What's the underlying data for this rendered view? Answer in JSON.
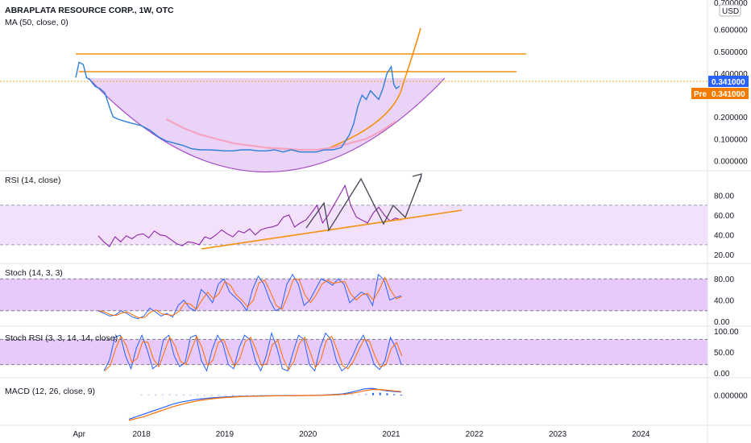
{
  "chart_data": [
    {
      "type": "line",
      "title": "ABRAPLATA RESOURCE CORP., 1W, OTC",
      "subtitle": "MA (50, close, 0)",
      "currency_label": "USD",
      "y_ticks": [
        "0.600000",
        "0.500000",
        "0.400000",
        "0.200000",
        "0.100000",
        "0.000000"
      ],
      "y_top_partial": "0.700000",
      "ylim": [
        -0.02,
        0.72
      ],
      "last_price_label": "0.341000",
      "pre_label": "Pre",
      "pre_price_label": "0.341000",
      "x_ticks": [
        "Apr",
        "2018",
        "2019",
        "2020",
        "2021",
        "2022",
        "2023",
        "2024"
      ],
      "x_tick_years": [
        2017.25,
        2018.0,
        2019.0,
        2020.0,
        2021.0,
        2022.0,
        2023.0,
        2024.0
      ],
      "xlim": [
        2016.3,
        2024.8
      ],
      "colors": {
        "price": "#2e7fd9",
        "ma": "#f4a3c0",
        "fill": "#e6c9f5",
        "cup": "#a24dc7",
        "resistance": "#f5900f",
        "up": "#2962ff",
        "pre": "#f57c00"
      },
      "series": [
        {
          "values_x": [
            2017.21,
            2017.25,
            2017.3,
            2017.34,
            2017.38,
            2017.44,
            2017.5,
            2017.56,
            2017.62,
            2017.66,
            2017.72,
            2017.8,
            2017.9,
            2018.0,
            2018.1,
            2018.2,
            2018.3,
            2018.4,
            2018.5,
            2018.6,
            2018.7,
            2018.8,
            2018.9,
            2019.0,
            2019.1,
            2019.2,
            2019.3,
            2019.4,
            2019.5,
            2019.6,
            2019.7,
            2019.8,
            2019.9,
            2020.0,
            2020.1,
            2020.2,
            2020.3,
            2020.4,
            2020.45,
            2020.5,
            2020.55,
            2020.6,
            2020.65,
            2020.7,
            2020.75,
            2020.8,
            2020.85,
            2020.9,
            2020.95,
            2021.0,
            2021.03,
            2021.06,
            2021.1
          ],
          "values_y": [
            0.38,
            0.45,
            0.44,
            0.38,
            0.37,
            0.34,
            0.33,
            0.31,
            0.24,
            0.2,
            0.19,
            0.18,
            0.17,
            0.16,
            0.14,
            0.11,
            0.09,
            0.08,
            0.07,
            0.055,
            0.05,
            0.05,
            0.048,
            0.045,
            0.045,
            0.05,
            0.05,
            0.045,
            0.045,
            0.05,
            0.04,
            0.05,
            0.04,
            0.04,
            0.04,
            0.05,
            0.05,
            0.06,
            0.09,
            0.12,
            0.17,
            0.25,
            0.3,
            0.28,
            0.32,
            0.3,
            0.28,
            0.33,
            0.4,
            0.43,
            0.35,
            0.33,
            0.341
          ]
        },
        {
          "values_x": [
            2018.3,
            2018.5,
            2018.7,
            2018.9,
            2019.1,
            2019.3,
            2019.5,
            2019.7,
            2019.9,
            2020.1,
            2020.3,
            2020.5,
            2020.7,
            2020.9,
            2021.05
          ],
          "values_y": [
            0.19,
            0.15,
            0.12,
            0.1,
            0.08,
            0.07,
            0.06,
            0.055,
            0.05,
            0.05,
            0.06,
            0.08,
            0.1,
            0.14,
            0.18
          ]
        }
      ]
    },
    {
      "type": "line",
      "title": "RSI (14, close)",
      "y_ticks": [
        "80.00",
        "60.00",
        "40.00",
        "20.00"
      ],
      "ylim": [
        16,
        100
      ],
      "band": [
        30,
        70
      ],
      "values": [
        39,
        33,
        28,
        38,
        33,
        39,
        36,
        40,
        41,
        37,
        44,
        40,
        39,
        35,
        31,
        29,
        33,
        32,
        30,
        38,
        36,
        40,
        45,
        41,
        38,
        44,
        42,
        46,
        40,
        45,
        47,
        48,
        50,
        58,
        60,
        48,
        52,
        55,
        62,
        70,
        52,
        60,
        70,
        80,
        90,
        70,
        58,
        55,
        52,
        62,
        68,
        60,
        54,
        57,
        55
      ]
    },
    {
      "type": "line",
      "title": "Stoch (14, 3, 3)",
      "y_ticks": [
        "80.00",
        "40.00",
        "0.00"
      ],
      "ylim": [
        0,
        100
      ],
      "band": [
        20,
        80
      ],
      "values": [
        20,
        15,
        10,
        12,
        20,
        15,
        8,
        5,
        10,
        25,
        18,
        10,
        15,
        8,
        30,
        40,
        25,
        20,
        60,
        50,
        35,
        70,
        80,
        55,
        45,
        35,
        20,
        60,
        85,
        70,
        40,
        20,
        25,
        70,
        88,
        70,
        30,
        40,
        60,
        80,
        75,
        68,
        80,
        70,
        35,
        45,
        55,
        50,
        30,
        88,
        78,
        40,
        45,
        48
      ]
    },
    {
      "type": "line",
      "title": "Stoch RSI (3, 3, 14, 14, close)",
      "y_ticks": [
        "100.00",
        "50.00",
        "0.00"
      ],
      "ylim": [
        0,
        100
      ],
      "band": [
        20,
        80
      ],
      "values": [
        5,
        30,
        85,
        90,
        40,
        10,
        60,
        90,
        55,
        10,
        20,
        80,
        90,
        40,
        15,
        25,
        85,
        90,
        30,
        5,
        55,
        90,
        70,
        20,
        10,
        60,
        90,
        80,
        30,
        5,
        40,
        95,
        60,
        10,
        5,
        50,
        90,
        80,
        20,
        5,
        60,
        95,
        80,
        30,
        5,
        15,
        40,
        70,
        90,
        60,
        20,
        8,
        30,
        85,
        60,
        20
      ]
    },
    {
      "type": "bar",
      "title": "MACD (12, 26, close, 9)",
      "y_ticks": [
        "0.000000"
      ],
      "ylim": [
        -0.2,
        0.1
      ],
      "histogram": [
        0.005,
        0.006,
        0.004,
        0.006,
        0.007,
        0.005,
        0.004,
        0.003,
        0.003,
        0.002,
        0.002,
        0.002,
        0.001,
        0.001,
        0.001,
        0.001,
        0.001,
        0.001,
        0.001,
        0.001,
        0.001,
        0.001,
        0.001,
        0.001,
        0.001,
        0.001,
        0.002,
        0.002,
        0.003,
        0.004,
        0.005,
        0.008,
        0.012,
        0.018,
        0.02,
        0.015,
        0.008,
        0.004
      ],
      "macd": [
        -0.19,
        -0.17,
        -0.15,
        -0.13,
        -0.11,
        -0.09,
        -0.07,
        -0.055,
        -0.045,
        -0.035,
        -0.028,
        -0.022,
        -0.018,
        -0.014,
        -0.011,
        -0.009,
        -0.007,
        -0.006,
        -0.005,
        -0.004,
        -0.004,
        -0.003,
        -0.003,
        -0.002,
        -0.002,
        -0.001,
        0.0,
        0.003,
        0.006,
        0.01,
        0.02,
        0.035,
        0.05,
        0.055,
        0.045,
        0.035,
        0.03,
        0.025
      ],
      "signal": [
        -0.2,
        -0.185,
        -0.17,
        -0.15,
        -0.13,
        -0.11,
        -0.09,
        -0.075,
        -0.06,
        -0.048,
        -0.038,
        -0.03,
        -0.024,
        -0.019,
        -0.015,
        -0.012,
        -0.01,
        -0.008,
        -0.007,
        -0.006,
        -0.005,
        -0.004,
        -0.004,
        -0.003,
        -0.002,
        -0.002,
        -0.001,
        0.001,
        0.003,
        0.006,
        0.012,
        0.022,
        0.035,
        0.045,
        0.045,
        0.04,
        0.034,
        0.028
      ]
    }
  ]
}
